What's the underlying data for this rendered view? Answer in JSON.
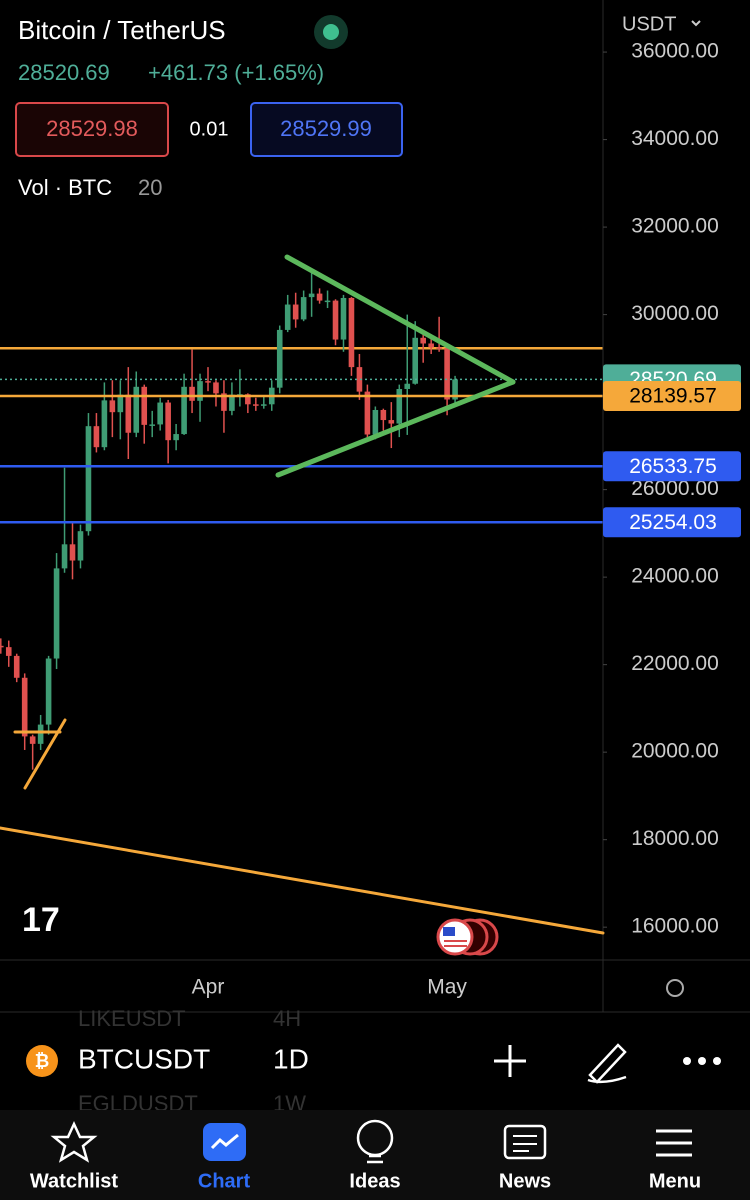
{
  "header": {
    "title": "Bitcoin / TetherUS",
    "price": "28520.69",
    "change": "+461.73 (+1.65%)",
    "bid": "28529.98",
    "spread": "0.01",
    "ask": "28529.99",
    "vol_label": "Vol · BTC",
    "vol_length": "20",
    "currency": "USDT"
  },
  "chart_data": {
    "type": "candlestick",
    "categories": [
      null,
      null,
      null,
      null,
      null,
      null,
      null,
      null,
      null,
      null,
      null,
      null,
      null,
      null,
      null,
      null,
      null,
      null,
      null,
      null,
      null,
      null,
      null,
      null,
      null,
      null,
      "Apr",
      null,
      null,
      null,
      null,
      null,
      null,
      null,
      null,
      null,
      null,
      null,
      null,
      null,
      null,
      null,
      null,
      null,
      null,
      null,
      null,
      null,
      null,
      null,
      null,
      null,
      null,
      null,
      null,
      null,
      "May",
      null
    ],
    "open": [
      22430,
      22400,
      22200,
      21700,
      20360,
      20190,
      20630,
      22140,
      24200,
      24750,
      24380,
      25050,
      27450,
      26970,
      28040,
      27770,
      28170,
      27300,
      28350,
      27480,
      27490,
      27990,
      27130,
      27270,
      28350,
      28030,
      28480,
      28450,
      28200,
      27800,
      28170,
      28180,
      27950,
      27920,
      27950,
      28330,
      29650,
      30230,
      29890,
      30400,
      30480,
      30320,
      30320,
      29430,
      30380,
      28800,
      28240,
      27260,
      27820,
      27590,
      27510,
      28300,
      28420,
      29470,
      29340,
      29250,
      29230,
      28060
    ],
    "high": [
      22600,
      22550,
      22250,
      21800,
      20400,
      20850,
      22200,
      24550,
      26500,
      25250,
      25200,
      27750,
      27750,
      28450,
      28500,
      28500,
      28800,
      28700,
      28400,
      27800,
      28100,
      28050,
      27500,
      28650,
      29200,
      28650,
      28800,
      28500,
      28500,
      28450,
      28750,
      28200,
      28100,
      28150,
      28500,
      29750,
      30450,
      30500,
      30550,
      31000,
      30600,
      30550,
      30350,
      30450,
      30400,
      29100,
      28400,
      27900,
      27850,
      28000,
      28400,
      30000,
      29850,
      29550,
      29450,
      29950,
      29300,
      28600
    ],
    "low": [
      22250,
      21950,
      21600,
      20050,
      19600,
      20050,
      20400,
      21900,
      24100,
      23950,
      24200,
      24950,
      26850,
      26900,
      27200,
      27150,
      26700,
      27200,
      27050,
      27200,
      27350,
      26600,
      26900,
      27250,
      27750,
      27550,
      28250,
      27900,
      27300,
      27700,
      27900,
      27750,
      27800,
      27850,
      27800,
      28200,
      29600,
      29700,
      29850,
      29950,
      30250,
      30150,
      29300,
      29150,
      28600,
      28050,
      27150,
      27150,
      27350,
      26950,
      27200,
      27250,
      28400,
      28900,
      29100,
      29150,
      27700,
      27900
    ],
    "close": [
      22400,
      22200,
      21700,
      20360,
      20190,
      20630,
      22140,
      24200,
      24750,
      24380,
      25050,
      27450,
      26970,
      28040,
      27770,
      28170,
      27300,
      28350,
      27480,
      27490,
      27990,
      27130,
      27270,
      28350,
      28030,
      28480,
      28450,
      28200,
      27800,
      28170,
      28180,
      27950,
      27920,
      27950,
      28330,
      29650,
      30230,
      29890,
      30400,
      30480,
      30320,
      30320,
      29430,
      30380,
      28800,
      28240,
      27260,
      27820,
      27590,
      27510,
      28300,
      28420,
      29470,
      29340,
      29250,
      29230,
      28060,
      28520
    ],
    "up_color": "#3f9c74",
    "down_color": "#e0514f",
    "ylim": [
      15250,
      37190
    ],
    "yticks": [
      {
        "value": 16000,
        "label": "16000.00"
      },
      {
        "value": 18000,
        "label": "18000.00"
      },
      {
        "value": 20000,
        "label": "20000.00"
      },
      {
        "value": 22000,
        "label": "22000.00"
      },
      {
        "value": 24000,
        "label": "24000.00"
      },
      {
        "value": 26000,
        "label": "26000.00"
      },
      {
        "value": 30000,
        "label": "30000.00"
      },
      {
        "value": 32000,
        "label": "32000.00"
      },
      {
        "value": 34000,
        "label": "34000.00"
      },
      {
        "value": 36000,
        "label": "36000.00"
      }
    ],
    "levels": [
      {
        "value": 29230,
        "color": "#f5a83a"
      }
    ],
    "price_lines": [
      {
        "value": 28520.69,
        "color": "#4fae98",
        "dotted": true
      },
      {
        "value": 28139.57,
        "color": "#f5a83a"
      },
      {
        "value": 26533.75,
        "color": "#2f5bf0"
      },
      {
        "value": 25254.03,
        "color": "#2f5bf0"
      }
    ]
  },
  "toolbar": {
    "symbol": "BTCUSDT",
    "interval": "1D",
    "prev_symbol": "LIKEUSDT",
    "prev_interval": "4H",
    "next_symbol": "EGLDUSDT",
    "next_interval": "1W"
  },
  "tabs": [
    "Watchlist",
    "Chart",
    "Ideas",
    "News",
    "Menu"
  ]
}
